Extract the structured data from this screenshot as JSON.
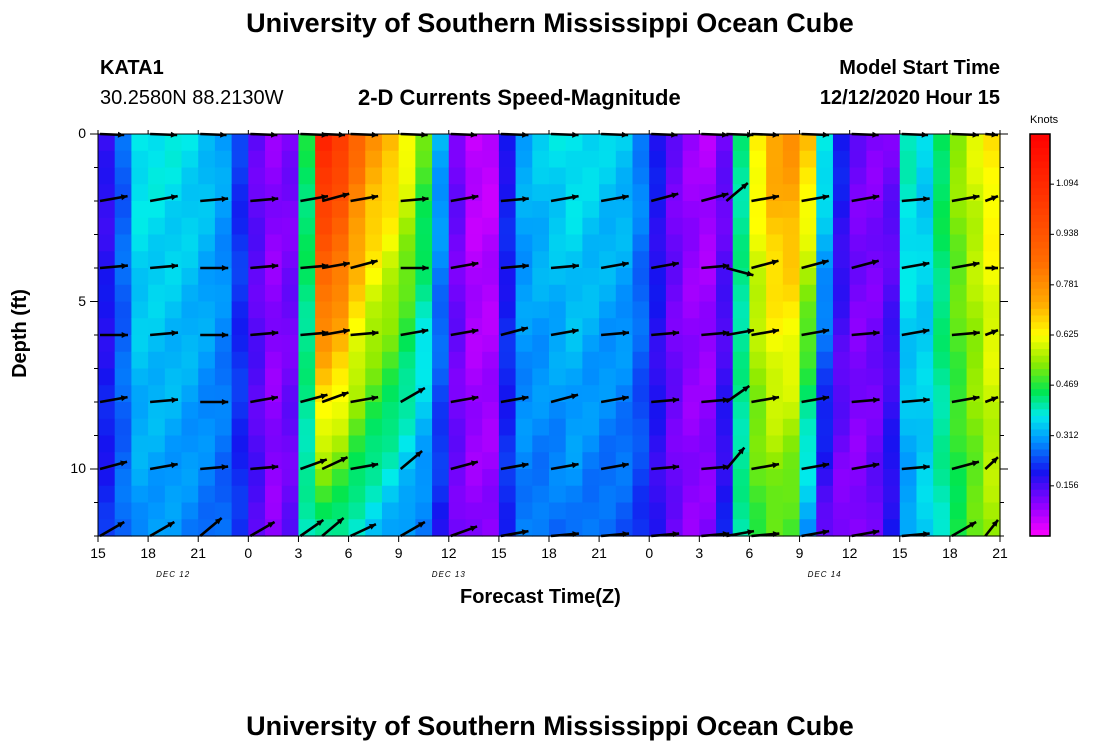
{
  "page": {
    "title_top": "University of Southern Mississippi Ocean Cube",
    "title_bottom": "University of Southern Mississippi Ocean Cube",
    "station": "KATA1",
    "coords": "30.2580N 88.2130W",
    "chart_title": "2-D Currents Speed-Magnitude",
    "model_label": "Model Start Time",
    "model_time": "12/12/2020 Hour 15",
    "colorbar_units": "Knots"
  },
  "chart_data": {
    "type": "heatmap",
    "title": "2-D Currents Speed-Magnitude",
    "xlabel": "Forecast Time(Z)",
    "ylabel": "Depth (ft)",
    "x_ticks": [
      "15",
      "18",
      "21",
      "0",
      "3",
      "6",
      "9",
      "12",
      "15",
      "18",
      "21",
      "0",
      "3",
      "6",
      "9",
      "12",
      "15",
      "18",
      "21"
    ],
    "date_labels": [
      {
        "text": "DEC 12",
        "at_tick": 1.5
      },
      {
        "text": "DEC 13",
        "at_tick": 7
      },
      {
        "text": "DEC 14",
        "at_tick": 14.5
      }
    ],
    "y_ticks": [
      "0",
      "5",
      "10"
    ],
    "y_tick_values": [
      0,
      5,
      10
    ],
    "ylim": [
      0,
      12
    ],
    "x_hours_range": [
      0,
      54
    ],
    "colorbar": {
      "label": "Knots",
      "ticks": [
        "1.094",
        "0.938",
        "0.781",
        "0.625",
        "0.469",
        "0.312",
        "0.156"
      ],
      "tick_values": [
        1.094,
        0.938,
        0.781,
        0.625,
        0.469,
        0.312,
        0.156
      ],
      "vmin": 0.0,
      "vmax": 1.25
    },
    "speed_profile_hours": [
      0,
      0.6,
      1.2,
      1.8,
      2.4,
      4.0,
      6.0,
      8.0,
      9.0,
      10.5,
      12.0,
      12.5,
      13.0,
      13.3,
      14.5,
      16.0,
      18.0,
      20.0,
      21.0,
      22.0,
      23.5,
      24.0,
      24.5,
      25.5,
      27.0,
      28.5,
      30.0,
      32.0,
      34.0,
      35.0,
      36.0,
      37.0,
      37.5,
      38.0,
      38.8,
      40.0,
      41.0,
      42.0,
      42.5,
      43.0,
      43.8,
      45.0,
      46.0,
      47.5,
      48.5,
      49.5,
      50.5,
      51.5,
      52.5,
      53.3,
      54.0
    ],
    "speed_top_knots": [
      0.12,
      0.18,
      0.22,
      0.3,
      0.38,
      0.38,
      0.36,
      0.3,
      0.15,
      0.1,
      0.12,
      0.45,
      0.85,
      1.15,
      1.05,
      0.8,
      0.7,
      0.45,
      0.2,
      0.05,
      0.05,
      0.1,
      0.2,
      0.32,
      0.36,
      0.38,
      0.36,
      0.34,
      0.15,
      0.1,
      0.08,
      0.06,
      0.12,
      0.2,
      0.55,
      0.72,
      0.78,
      0.78,
      0.7,
      0.55,
      0.3,
      0.15,
      0.1,
      0.12,
      0.4,
      0.35,
      0.45,
      0.55,
      0.6,
      0.65,
      0.65
    ],
    "speed_bottom_knots": [
      0.2,
      0.22,
      0.25,
      0.28,
      0.3,
      0.3,
      0.28,
      0.25,
      0.18,
      0.1,
      0.15,
      0.4,
      0.4,
      0.42,
      0.4,
      0.35,
      0.3,
      0.25,
      0.15,
      0.1,
      0.1,
      0.15,
      0.22,
      0.28,
      0.26,
      0.28,
      0.26,
      0.25,
      0.15,
      0.1,
      0.1,
      0.12,
      0.2,
      0.35,
      0.45,
      0.5,
      0.5,
      0.45,
      0.3,
      0.2,
      0.1,
      0.1,
      0.1,
      0.2,
      0.3,
      0.35,
      0.4,
      0.45,
      0.5,
      0.55,
      0.55
    ],
    "vector_columns_hours": [
      0,
      3,
      6,
      9,
      12,
      13.3,
      15,
      18,
      21,
      24,
      27,
      30,
      33,
      36,
      37.5,
      39,
      42,
      45,
      48,
      51,
      53
    ],
    "vector_depths_ft": [
      0,
      2,
      4,
      6,
      8,
      10,
      12
    ],
    "vector_angles_deg": [
      [
        30,
        15,
        20,
        15,
        10,
        35,
        10,
        15,
        20,
        10,
        10,
        15,
        20,
        15,
        15,
        10,
        10,
        15,
        20,
        15,
        25
      ],
      [
        10,
        10,
        5,
        5,
        10,
        15,
        10,
        5,
        10,
        5,
        10,
        10,
        15,
        15,
        40,
        10,
        10,
        10,
        5,
        10,
        10
      ],
      [
        5,
        5,
        0,
        5,
        5,
        10,
        15,
        0,
        10,
        5,
        5,
        10,
        10,
        5,
        -15,
        15,
        15,
        15,
        10,
        10,
        0
      ],
      [
        0,
        5,
        0,
        5,
        5,
        10,
        5,
        10,
        10,
        15,
        10,
        5,
        5,
        5,
        10,
        10,
        10,
        5,
        10,
        5,
        10
      ],
      [
        10,
        5,
        0,
        10,
        15,
        20,
        10,
        30,
        10,
        10,
        15,
        10,
        5,
        5,
        35,
        10,
        10,
        5,
        5,
        10,
        10
      ],
      [
        15,
        10,
        5,
        5,
        20,
        25,
        10,
        40,
        15,
        10,
        10,
        10,
        5,
        5,
        50,
        10,
        10,
        10,
        5,
        15,
        25
      ],
      [
        30,
        30,
        40,
        30,
        35,
        40,
        25,
        30,
        20,
        10,
        5,
        5,
        5,
        5,
        10,
        5,
        10,
        10,
        5,
        30,
        35
      ]
    ]
  }
}
